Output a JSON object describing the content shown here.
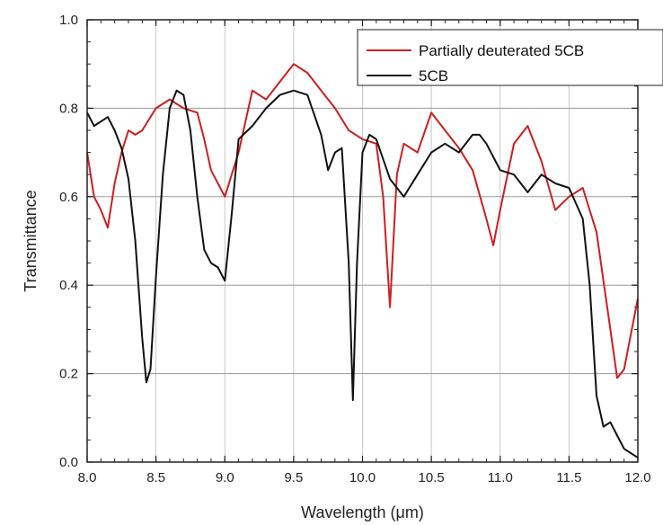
{
  "chart_data": {
    "type": "line",
    "xlabel": "Wavelength (μm)",
    "ylabel": "Transmittance",
    "xlim": [
      8.0,
      12.0
    ],
    "ylim": [
      0.0,
      1.0
    ],
    "x_ticks": [
      "8.0",
      "8.5",
      "9.0",
      "9.5",
      "10.0",
      "10.5",
      "11.0",
      "11.5",
      "12.0"
    ],
    "y_ticks": [
      "0.0",
      "0.2",
      "0.4",
      "0.6",
      "0.8",
      "1.0"
    ],
    "grid": true,
    "legend_position": "top-right",
    "series": [
      {
        "name": "Partially deuterated 5CB",
        "color": "#cc1f1f",
        "x": [
          8.0,
          8.05,
          8.1,
          8.15,
          8.2,
          8.25,
          8.3,
          8.35,
          8.4,
          8.5,
          8.6,
          8.7,
          8.8,
          8.85,
          8.9,
          8.95,
          9.0,
          9.05,
          9.1,
          9.2,
          9.3,
          9.4,
          9.5,
          9.6,
          9.7,
          9.8,
          9.9,
          10.0,
          10.1,
          10.15,
          10.2,
          10.25,
          10.3,
          10.4,
          10.5,
          10.6,
          10.7,
          10.8,
          10.9,
          10.95,
          11.0,
          11.1,
          11.2,
          11.3,
          11.4,
          11.5,
          11.6,
          11.7,
          11.8,
          11.85,
          11.9,
          12.0
        ],
        "values": [
          0.7,
          0.6,
          0.57,
          0.53,
          0.63,
          0.7,
          0.75,
          0.74,
          0.75,
          0.8,
          0.82,
          0.8,
          0.79,
          0.73,
          0.66,
          0.63,
          0.6,
          0.65,
          0.7,
          0.84,
          0.82,
          0.86,
          0.9,
          0.88,
          0.84,
          0.8,
          0.75,
          0.73,
          0.72,
          0.6,
          0.35,
          0.65,
          0.72,
          0.7,
          0.79,
          0.75,
          0.71,
          0.66,
          0.55,
          0.49,
          0.57,
          0.72,
          0.76,
          0.68,
          0.57,
          0.6,
          0.62,
          0.52,
          0.3,
          0.19,
          0.21,
          0.37
        ]
      },
      {
        "name": "5CB",
        "color": "#111111",
        "x": [
          8.0,
          8.05,
          8.1,
          8.15,
          8.2,
          8.25,
          8.3,
          8.35,
          8.4,
          8.43,
          8.46,
          8.5,
          8.55,
          8.6,
          8.65,
          8.7,
          8.75,
          8.8,
          8.85,
          8.9,
          8.95,
          9.0,
          9.05,
          9.1,
          9.2,
          9.3,
          9.4,
          9.5,
          9.6,
          9.7,
          9.75,
          9.8,
          9.85,
          9.9,
          9.93,
          9.96,
          10.0,
          10.05,
          10.1,
          10.2,
          10.3,
          10.4,
          10.5,
          10.6,
          10.7,
          10.8,
          10.85,
          10.9,
          11.0,
          11.1,
          11.2,
          11.3,
          11.4,
          11.5,
          11.6,
          11.65,
          11.7,
          11.75,
          11.8,
          11.85,
          11.9,
          12.0
        ],
        "values": [
          0.79,
          0.76,
          0.77,
          0.78,
          0.75,
          0.71,
          0.64,
          0.5,
          0.28,
          0.18,
          0.21,
          0.42,
          0.65,
          0.8,
          0.84,
          0.83,
          0.75,
          0.6,
          0.48,
          0.45,
          0.44,
          0.41,
          0.56,
          0.73,
          0.76,
          0.8,
          0.83,
          0.84,
          0.83,
          0.74,
          0.66,
          0.7,
          0.71,
          0.45,
          0.14,
          0.45,
          0.7,
          0.74,
          0.73,
          0.64,
          0.6,
          0.65,
          0.7,
          0.72,
          0.7,
          0.74,
          0.74,
          0.72,
          0.66,
          0.65,
          0.61,
          0.65,
          0.63,
          0.62,
          0.55,
          0.4,
          0.15,
          0.08,
          0.09,
          0.06,
          0.03,
          0.01
        ]
      }
    ]
  }
}
